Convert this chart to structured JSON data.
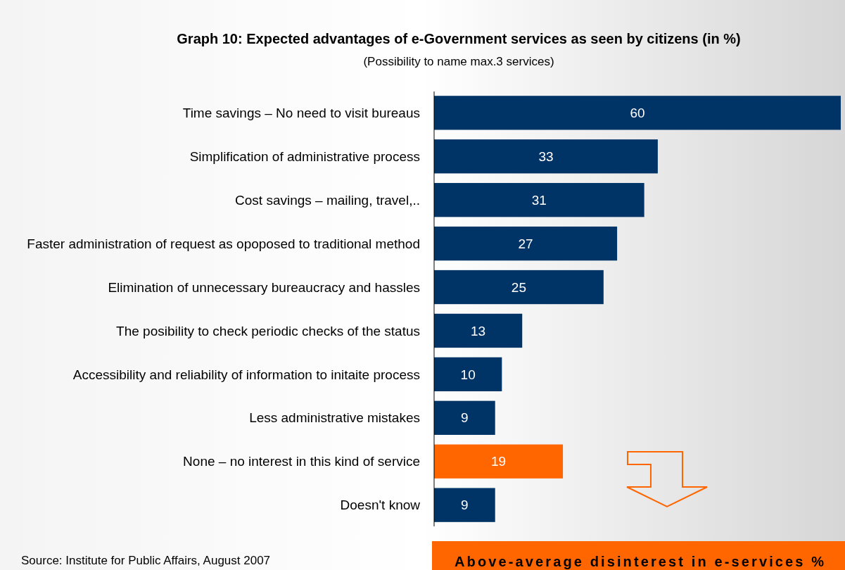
{
  "chart_data": {
    "type": "bar",
    "orientation": "horizontal",
    "title": "Graph 10: Expected advantages of e-Government services as seen by citizens (in %)",
    "subtitle": "(Possibility to name max.3 services)",
    "categories": [
      "Time savings – No need to visit bureaus",
      "Simplification of administrative process",
      "Cost savings – mailing, travel,..",
      "Faster administration of request as opoposed to traditional method",
      "Elimination of unnecessary bureaucracy and hassles",
      "The posibility to check periodic checks of the status",
      "Accessibility and reliability of information to initaite process",
      "Less administrative mistakes",
      "None – no interest in this kind of service",
      "Doesn't know"
    ],
    "values": [
      60,
      33,
      31,
      27,
      25,
      13,
      10,
      9,
      19,
      9
    ],
    "colors": [
      "#003366",
      "#003366",
      "#003366",
      "#003366",
      "#003366",
      "#003366",
      "#003366",
      "#003366",
      "#ff6600",
      "#003366"
    ],
    "data_labels": true,
    "tick_labels": "y",
    "annotations": [
      "Source: Institute for Public Affairs, August 2007",
      "Above-average disinterest in e-services %"
    ]
  }
}
